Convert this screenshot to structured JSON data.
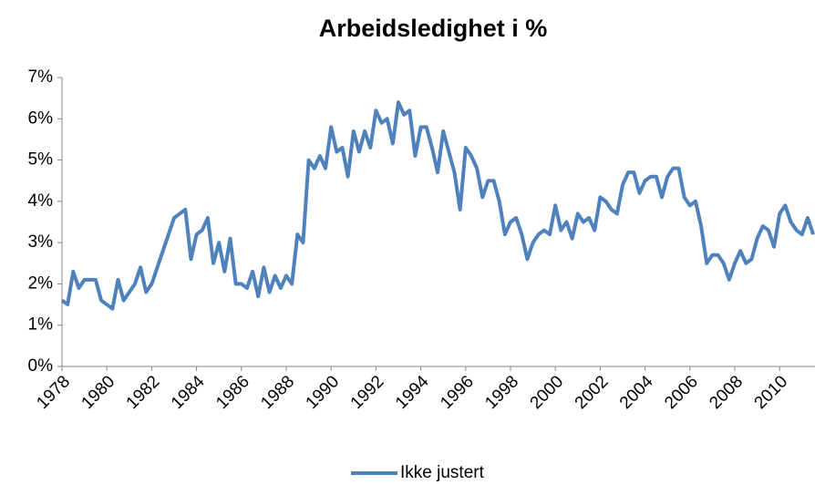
{
  "chart_data": {
    "type": "line",
    "title": "Arbeidsledighet i %",
    "categories": [
      "1978",
      null,
      null,
      null,
      null,
      null,
      null,
      null,
      "1980",
      null,
      null,
      null,
      null,
      null,
      null,
      null,
      "1982",
      null,
      null,
      null,
      null,
      null,
      null,
      null,
      "1984",
      null,
      null,
      null,
      null,
      null,
      null,
      null,
      "1986",
      null,
      null,
      null,
      null,
      null,
      null,
      null,
      "1988",
      null,
      null,
      null,
      null,
      null,
      null,
      null,
      "1990",
      null,
      null,
      null,
      null,
      null,
      null,
      null,
      "1992",
      null,
      null,
      null,
      null,
      null,
      null,
      null,
      "1994",
      null,
      null,
      null,
      null,
      null,
      null,
      null,
      "1996",
      null,
      null,
      null,
      null,
      null,
      null,
      null,
      "1998",
      null,
      null,
      null,
      null,
      null,
      null,
      null,
      "2000",
      null,
      null,
      null,
      null,
      null,
      null,
      null,
      "2002",
      null,
      null,
      null,
      null,
      null,
      null,
      null,
      "2004",
      null,
      null,
      null,
      null,
      null,
      null,
      null,
      "2006",
      null,
      null,
      null,
      null,
      null,
      null,
      null,
      "2008",
      null,
      null,
      null,
      null,
      null,
      null,
      null,
      "2010",
      null,
      null,
      null,
      null,
      null,
      null
    ],
    "series": [
      {
        "name": "Ikke justert",
        "color": "#4f81bd",
        "values": [
          1.6,
          1.5,
          2.3,
          1.9,
          2.1,
          2.1,
          2.1,
          1.6,
          1.5,
          1.4,
          2.1,
          1.6,
          1.8,
          2.0,
          2.4,
          1.8,
          2.0,
          2.4,
          2.8,
          3.2,
          3.6,
          3.7,
          3.8,
          2.6,
          3.2,
          3.3,
          3.6,
          2.5,
          3.0,
          2.3,
          3.1,
          2.0,
          2.0,
          1.9,
          2.3,
          1.7,
          2.4,
          1.8,
          2.2,
          1.9,
          2.2,
          2.0,
          3.2,
          3.0,
          5.0,
          4.8,
          5.1,
          4.8,
          5.8,
          5.2,
          5.3,
          4.6,
          5.7,
          5.2,
          5.7,
          5.3,
          6.2,
          5.9,
          6.0,
          5.4,
          6.4,
          6.1,
          6.2,
          5.1,
          5.8,
          5.8,
          5.3,
          4.7,
          5.7,
          5.2,
          4.7,
          3.8,
          5.3,
          5.1,
          4.8,
          4.1,
          4.5,
          4.5,
          4.0,
          3.2,
          3.5,
          3.6,
          3.2,
          2.6,
          3.0,
          3.2,
          3.3,
          3.2,
          3.9,
          3.3,
          3.5,
          3.1,
          3.7,
          3.5,
          3.6,
          3.3,
          4.1,
          4.0,
          3.8,
          3.7,
          4.4,
          4.7,
          4.7,
          4.2,
          4.5,
          4.6,
          4.6,
          4.1,
          4.6,
          4.8,
          4.8,
          4.1,
          3.9,
          4.0,
          3.4,
          2.5,
          2.7,
          2.7,
          2.5,
          2.1,
          2.5,
          2.8,
          2.5,
          2.6,
          3.1,
          3.4,
          3.3,
          2.9,
          3.7,
          3.9,
          3.5,
          3.3,
          3.2,
          3.6,
          3.2
        ]
      }
    ],
    "ylim": [
      0,
      7
    ],
    "yticks": [
      {
        "value": 0,
        "label": "0%"
      },
      {
        "value": 1,
        "label": "1%"
      },
      {
        "value": 2,
        "label": "2%"
      },
      {
        "value": 3,
        "label": "3%"
      },
      {
        "value": 4,
        "label": "4%"
      },
      {
        "value": 5,
        "label": "5%"
      },
      {
        "value": 6,
        "label": "6%"
      },
      {
        "value": 7,
        "label": "7%"
      }
    ],
    "legend": "bottom"
  }
}
